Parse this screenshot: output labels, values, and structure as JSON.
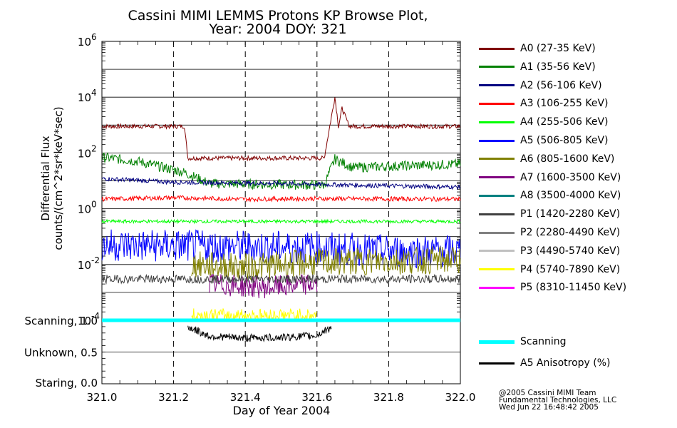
{
  "chart_data": {
    "type": "line",
    "title": "Cassini MIMI LEMMS Protons KP Browse Plot,",
    "subtitle": "Year: 2004 DOY: 321",
    "xlabel": "Day of Year 2004",
    "ylabel": [
      "Differential Flux",
      "counts/(cm^2*sr*keV*sec)"
    ],
    "yscale": "log",
    "xlim": [
      321.0,
      322.0
    ],
    "ylim": [
      0.0001,
      1000000
    ],
    "x_ticks": [
      "321.0",
      "321.2",
      "321.4",
      "321.6",
      "321.8",
      "322.0"
    ],
    "y_ticks": [
      {
        "base": "10",
        "exp": "-4"
      },
      {
        "base": "10",
        "exp": "-2"
      },
      {
        "base": "10",
        "exp": "0"
      },
      {
        "base": "10",
        "exp": "2"
      },
      {
        "base": "10",
        "exp": "4"
      },
      {
        "base": "10",
        "exp": "6"
      }
    ],
    "grid": "horizontal lines at each decade, dashed vertical lines at 321.2, 321.4, 321.6, 321.8",
    "legend_placement": "right",
    "series": [
      {
        "name": "A0 (27-35 KeV)",
        "color": "#800000",
        "x": [
          321.0,
          321.23,
          321.24,
          321.62,
          321.65,
          321.66,
          321.67,
          321.69,
          321.72,
          322.0
        ],
        "y": [
          900,
          900,
          65,
          65,
          10000,
          900,
          4000,
          900,
          900,
          900
        ]
      },
      {
        "name": "A1 (35-56 KeV)",
        "color": "#008000",
        "x": [
          321.0,
          321.1,
          321.23,
          321.3,
          321.62,
          321.65,
          321.7,
          322.0
        ],
        "y": [
          70,
          50,
          20,
          8,
          7,
          60,
          30,
          40
        ]
      },
      {
        "name": "A2 (56-106 KeV)",
        "color": "#000080",
        "x": [
          321.0,
          321.2,
          321.5,
          321.7,
          322.0
        ],
        "y": [
          12,
          9,
          8,
          7,
          6
        ]
      },
      {
        "name": "A3 (106-255 KeV)",
        "color": "#ff0000",
        "x": [
          321.0,
          321.2,
          321.4,
          321.6,
          322.0
        ],
        "y": [
          2.2,
          2.5,
          2.2,
          2.3,
          2.2
        ]
      },
      {
        "name": "A4 (255-506 KeV)",
        "color": "#00ff00",
        "x": [
          321.0,
          322.0
        ],
        "y": [
          0.35,
          0.35
        ]
      },
      {
        "name": "A5 (506-805 KeV)",
        "color": "#0000ff",
        "x": [
          321.0,
          321.6,
          321.8,
          322.0
        ],
        "y": [
          0.05,
          0.04,
          0.03,
          0.03
        ]
      },
      {
        "name": "A6 (805-1600 KeV)",
        "color": "#808000",
        "x": [
          321.25,
          321.4,
          321.6,
          322.0
        ],
        "y": [
          0.01,
          0.008,
          0.012,
          0.015
        ]
      },
      {
        "name": "A7 (1600-3500 KeV)",
        "color": "#800080",
        "x": [
          321.3,
          321.45,
          321.6
        ],
        "y": [
          0.002,
          0.0015,
          0.002
        ]
      },
      {
        "name": "A8 (3500-4000 KeV)",
        "color": "#008080",
        "x": [],
        "y": []
      },
      {
        "name": "P1 (1420-2280 KeV)",
        "color": "#404040",
        "x": [
          321.0,
          321.5,
          322.0
        ],
        "y": [
          0.003,
          0.003,
          0.003
        ]
      },
      {
        "name": "P2 (2280-4490 KeV)",
        "color": "#808080",
        "x": [],
        "y": []
      },
      {
        "name": "P3 (4490-5740 KeV)",
        "color": "#c0c0c0",
        "x": [],
        "y": []
      },
      {
        "name": "P4 (5740-7890 KeV)",
        "color": "#ffff00",
        "x": [
          321.25,
          321.4,
          321.6
        ],
        "y": [
          0.00015,
          0.00015,
          0.00015
        ]
      },
      {
        "name": "P5 (8310-11450 KeV)",
        "color": "#ff00ff",
        "x": [],
        "y": []
      }
    ],
    "lower_panel": {
      "y_tick_labels": [
        "Scanning, 1.0",
        "Unknown, 0.5",
        "Staring, 0.0"
      ],
      "ylim": [
        0.0,
        1.0
      ],
      "series": [
        {
          "name": "Scanning",
          "color": "#00ffff",
          "x": [
            321.0,
            322.0
          ],
          "y": [
            1.0,
            1.0
          ]
        },
        {
          "name": "A5 Anisotropy (%)",
          "color": "#000000",
          "x": [
            321.24,
            321.3,
            321.4,
            321.5,
            321.6,
            321.64
          ],
          "y": [
            0.9,
            0.75,
            0.72,
            0.73,
            0.76,
            0.9
          ]
        }
      ]
    }
  },
  "credit": [
    "@2005 Cassini MIMI Team",
    "Fundamental Technologies, LLC",
    "Wed Jun 22 16:48:42 2005"
  ]
}
